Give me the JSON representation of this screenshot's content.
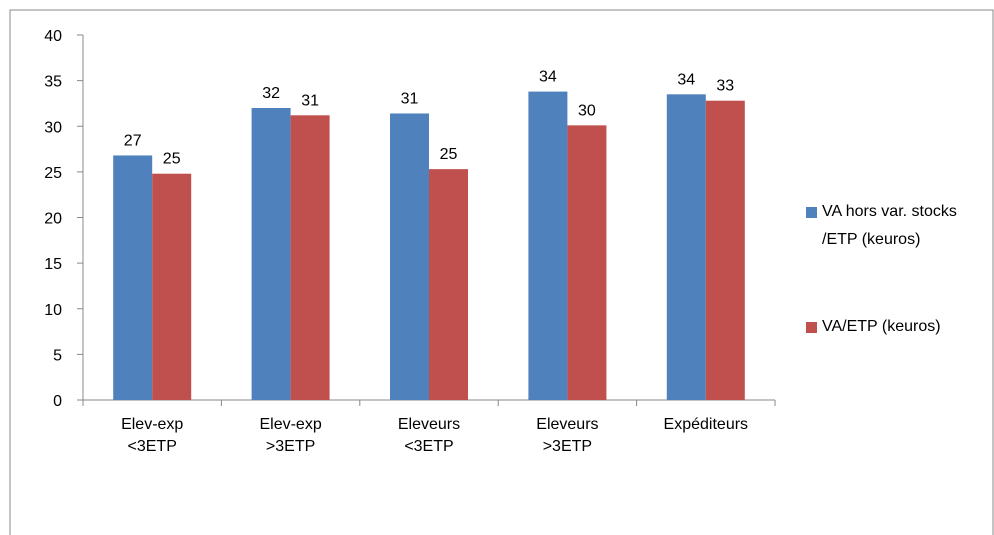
{
  "chart_data": {
    "type": "bar",
    "categories": [
      "Elev-exp <3ETP",
      "Elev-exp >3ETP",
      "Eleveurs <3ETP",
      "Eleveurs >3ETP",
      "Expéditeurs"
    ],
    "series": [
      {
        "name": "VA hors var. stocks /ETP (keuros)",
        "color": "#4f81bd",
        "values": [
          26.8,
          32.0,
          31.4,
          33.8,
          33.5
        ],
        "value_labels": [
          "27",
          "32",
          "31",
          "34",
          "34"
        ]
      },
      {
        "name": "VA/ETP (keuros)",
        "color": "#c0504d",
        "values": [
          24.8,
          31.2,
          25.3,
          30.1,
          32.8
        ],
        "value_labels": [
          "25",
          "31",
          "25",
          "30",
          "33"
        ]
      }
    ],
    "ylim": [
      0,
      40
    ],
    "yticks": [
      0,
      5,
      10,
      15,
      20,
      25,
      30,
      35,
      40
    ],
    "grid": false,
    "legend": "right"
  }
}
